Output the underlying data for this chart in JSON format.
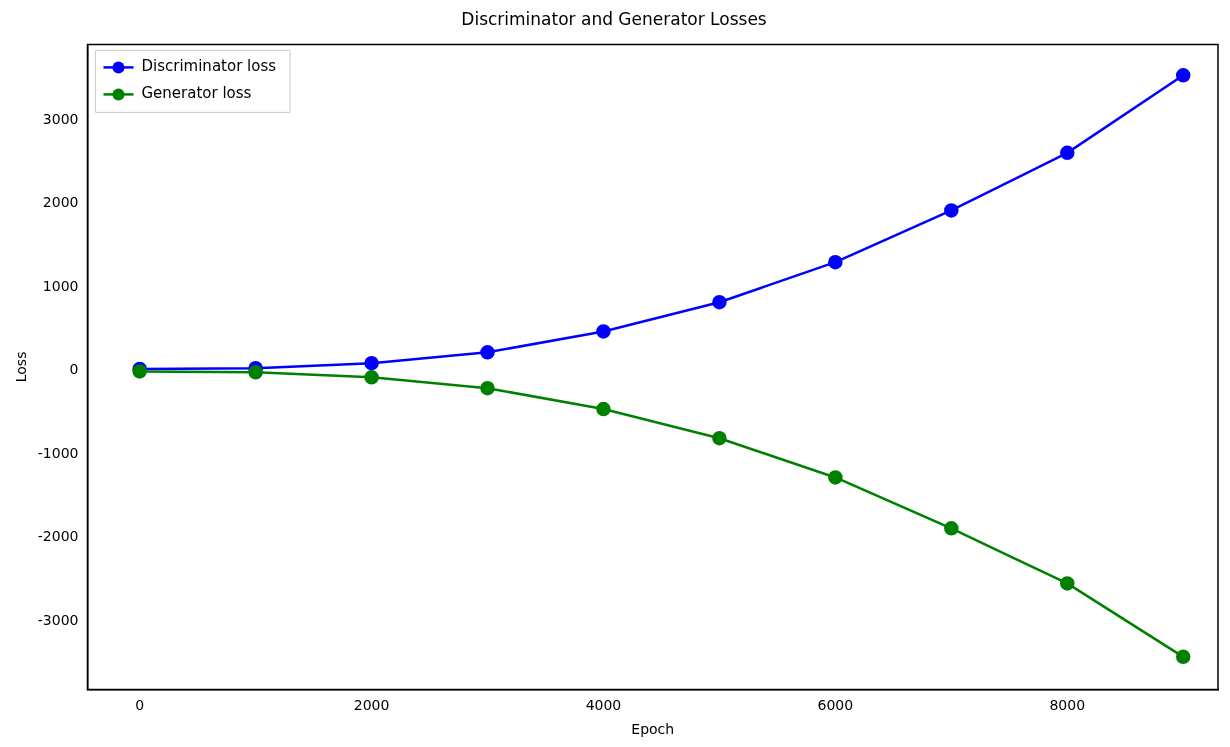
{
  "chart_data": {
    "type": "line",
    "title": "Discriminator and Generator Losses",
    "xlabel": "Epoch",
    "ylabel": "Loss",
    "x": [
      0,
      1000,
      2000,
      3000,
      4000,
      5000,
      6000,
      7000,
      8000,
      9000
    ],
    "series": [
      {
        "name": "Discriminator loss",
        "color": "#0000ff",
        "values": [
          20,
          30,
          90,
          220,
          470,
          820,
          1300,
          1920,
          2610,
          3540
        ]
      },
      {
        "name": "Generator loss",
        "color": "#008000",
        "values": [
          -10,
          -20,
          -80,
          -210,
          -460,
          -810,
          -1280,
          -1890,
          -2550,
          -3430
        ]
      }
    ],
    "xlim": [
      -450,
      9300
    ],
    "xticks": [
      0,
      2000,
      4000,
      6000,
      8000
    ],
    "ylim": [
      -3820,
      3910
    ],
    "yticks": [
      -3000,
      -2000,
      -1000,
      0,
      1000,
      2000,
      3000
    ],
    "grid": false,
    "legend": "top left",
    "marker": "circle",
    "line_style": "solid"
  }
}
